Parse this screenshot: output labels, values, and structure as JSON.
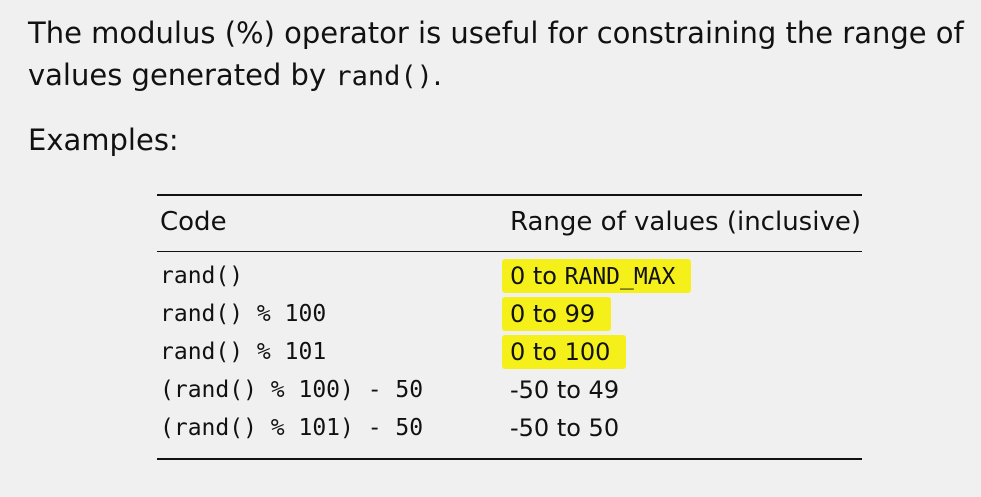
{
  "intro": {
    "text_before": "The modulus (%) operator is useful for constraining the range of values generated by ",
    "code": "rand()",
    "text_after": "."
  },
  "examples_label": "Examples:",
  "table": {
    "headers": {
      "code": "Code",
      "range": "Range of values (inclusive)"
    },
    "rows": [
      {
        "code": "rand()",
        "range_prefix": "0 to ",
        "range_mono": "RAND_MAX",
        "range_text": "",
        "highlighted": true
      },
      {
        "code": "rand() % 100",
        "range_prefix": "",
        "range_mono": "",
        "range_text": "0 to 99",
        "highlighted": true
      },
      {
        "code": "rand() % 101",
        "range_prefix": "",
        "range_mono": "",
        "range_text": "0 to 100",
        "highlighted": true
      },
      {
        "code": "(rand() % 100) - 50",
        "range_prefix": "",
        "range_mono": "",
        "range_text": "-50 to 49",
        "highlighted": false
      },
      {
        "code": "(rand() % 101) - 50",
        "range_prefix": "",
        "range_mono": "",
        "range_text": "-50 to 50",
        "highlighted": false
      }
    ]
  },
  "colors": {
    "highlight": "#f5f01a",
    "background": "#f0f0f0",
    "text": "#111111"
  }
}
